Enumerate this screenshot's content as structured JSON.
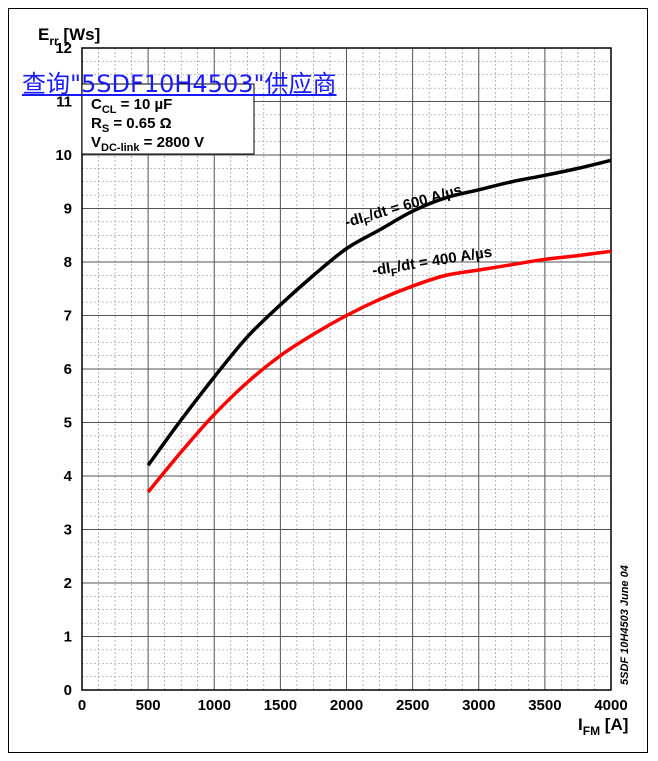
{
  "link_text": "查询\"5SDF10H4503\"供应商",
  "chart_data": {
    "type": "line",
    "ylabel_main": "E",
    "ylabel_sub": "rr",
    "ylabel_unit": " [Ws]",
    "xlabel_main": "I",
    "xlabel_sub": "FM",
    "xlabel_unit": " [A]",
    "xlim": [
      0,
      4000
    ],
    "ylim": [
      0,
      12
    ],
    "x_ticks": [
      0,
      500,
      1000,
      1500,
      2000,
      2500,
      3000,
      3500,
      4000
    ],
    "y_ticks": [
      0,
      1,
      2,
      3,
      4,
      5,
      6,
      7,
      8,
      9,
      10,
      11,
      12
    ],
    "grid": true,
    "conditions": [
      {
        "main": "C",
        "sub": "CL",
        "rest": " = 10 µF"
      },
      {
        "main": "R",
        "sub": "S",
        "rest": " = 0.65 Ω"
      },
      {
        "main": "V",
        "sub": "DC-link",
        "rest": " = 2800 V"
      }
    ],
    "watermark": "5SDF 10H4503 June 04",
    "series": [
      {
        "label_pre": "-dI",
        "label_sub": "F",
        "label_post": "/dt = 600 A/µs",
        "color": "#000000",
        "x": [
          500,
          750,
          1000,
          1250,
          1500,
          1750,
          2000,
          2250,
          2500,
          2750,
          3000,
          3250,
          3500,
          3750,
          4000
        ],
        "y": [
          4.2,
          5.05,
          5.85,
          6.6,
          7.2,
          7.75,
          8.25,
          8.6,
          8.95,
          9.2,
          9.35,
          9.5,
          9.62,
          9.75,
          9.9
        ]
      },
      {
        "label_pre": "-dI",
        "label_sub": "F",
        "label_post": "/dt = 400 A/µs",
        "color": "#ff0000",
        "x": [
          500,
          750,
          1000,
          1250,
          1500,
          1750,
          2000,
          2250,
          2500,
          2750,
          3000,
          3250,
          3500,
          3750,
          4000
        ],
        "y": [
          3.7,
          4.45,
          5.15,
          5.75,
          6.25,
          6.65,
          7.0,
          7.3,
          7.55,
          7.75,
          7.85,
          7.95,
          8.05,
          8.12,
          8.2
        ]
      }
    ]
  }
}
